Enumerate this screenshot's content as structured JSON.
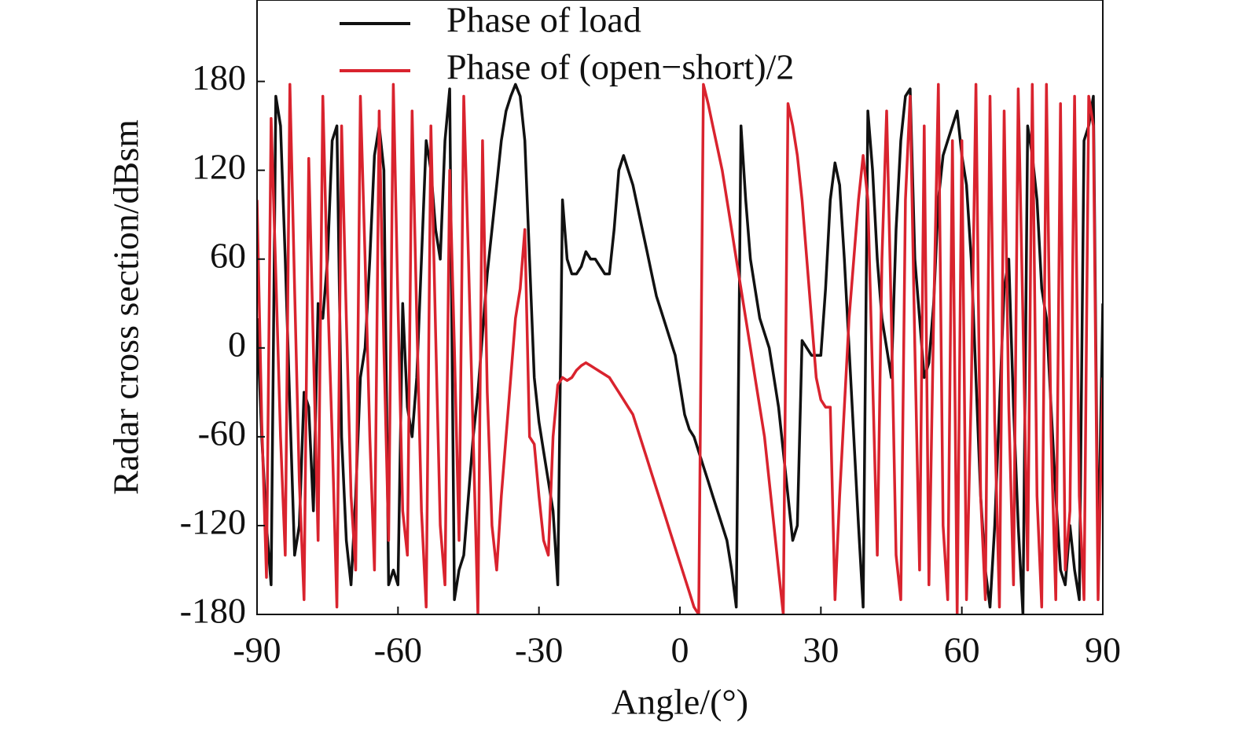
{
  "chart_data": {
    "type": "line",
    "xlabel": "Angle/(°)",
    "ylabel": "Radar cross section/dBsm",
    "legend": "upper left",
    "xlim": [
      -90,
      90
    ],
    "xticks": [
      -90,
      -60,
      -30,
      0,
      30,
      60,
      90
    ],
    "ylim": [
      -180,
      235
    ],
    "yticks": [
      -180,
      -120,
      -60,
      0,
      60,
      120,
      180
    ],
    "x": [
      -90,
      -89,
      -88,
      -87,
      -86,
      -85,
      -84,
      -83,
      -82,
      -81,
      -80,
      -79,
      -78,
      -77,
      -76,
      -75,
      -74,
      -73,
      -72,
      -71,
      -70,
      -69,
      -68,
      -67,
      -66,
      -65,
      -64,
      -63,
      -62,
      -61,
      -60,
      -59,
      -58,
      -57,
      -56,
      -55,
      -54,
      -53,
      -52,
      -51,
      -50,
      -49,
      -48,
      -47,
      -46,
      -45,
      -44,
      -43,
      -42,
      -41,
      -40,
      -39,
      -38,
      -37,
      -36,
      -35,
      -34,
      -33,
      -32,
      -31,
      -30,
      -29,
      -28,
      -27,
      -26,
      -25,
      -24,
      -23,
      -22,
      -21,
      -20,
      -19,
      -18,
      -17,
      -16,
      -15,
      -14,
      -13,
      -12,
      -11,
      -10,
      -9,
      -8,
      -7,
      -6,
      -5,
      -4,
      -3,
      -2,
      -1,
      0,
      1,
      2,
      3,
      4,
      5,
      6,
      7,
      8,
      9,
      10,
      11,
      12,
      13,
      14,
      15,
      16,
      17,
      18,
      19,
      20,
      21,
      22,
      23,
      24,
      25,
      26,
      27,
      28,
      29,
      30,
      31,
      32,
      33,
      34,
      35,
      36,
      37,
      38,
      39,
      40,
      41,
      42,
      43,
      44,
      45,
      46,
      47,
      48,
      49,
      50,
      51,
      52,
      53,
      54,
      55,
      56,
      57,
      58,
      59,
      60,
      61,
      62,
      63,
      64,
      65,
      66,
      67,
      68,
      69,
      70,
      71,
      72,
      73,
      74,
      75,
      76,
      77,
      78,
      79,
      80,
      81,
      82,
      83,
      84,
      85,
      86,
      87,
      88,
      89,
      90
    ],
    "series": [
      {
        "name": "Phase of load",
        "color": "#111111",
        "values": [
          20,
          -60,
          -120,
          -160,
          170,
          150,
          60,
          -40,
          -140,
          -120,
          -30,
          -40,
          -110,
          30,
          20,
          60,
          140,
          150,
          -60,
          -130,
          -160,
          -100,
          -20,
          0,
          60,
          130,
          150,
          120,
          -160,
          -150,
          -160,
          30,
          -40,
          -60,
          -20,
          60,
          140,
          120,
          80,
          60,
          140,
          175,
          -170,
          -150,
          -140,
          -100,
          -60,
          -30,
          10,
          50,
          80,
          110,
          140,
          160,
          170,
          178,
          170,
          140,
          60,
          -20,
          -50,
          -70,
          -90,
          -110,
          -160,
          100,
          60,
          50,
          50,
          55,
          65,
          60,
          60,
          55,
          50,
          50,
          80,
          120,
          130,
          120,
          110,
          95,
          80,
          65,
          50,
          35,
          25,
          15,
          5,
          -5,
          -25,
          -45,
          -55,
          -60,
          -70,
          -80,
          -90,
          -100,
          -110,
          -120,
          -130,
          -150,
          -175,
          150,
          100,
          60,
          40,
          20,
          10,
          0,
          -20,
          -40,
          -70,
          -100,
          -130,
          -120,
          5,
          0,
          -5,
          -5,
          -5,
          40,
          100,
          125,
          110,
          60,
          0,
          -60,
          -120,
          -175,
          160,
          120,
          60,
          20,
          0,
          -20,
          80,
          140,
          170,
          175,
          60,
          20,
          -20,
          -10,
          30,
          100,
          130,
          140,
          150,
          160,
          130,
          110,
          60,
          -20,
          -100,
          -150,
          -175,
          -120,
          -40,
          40,
          60,
          -40,
          -120,
          -180,
          150,
          130,
          100,
          40,
          20,
          -40,
          -100,
          -150,
          -160,
          -120,
          -150,
          -170,
          140,
          150,
          170,
          -150,
          30
        ]
      },
      {
        "name": "Phase of (open−short)/2",
        "color": "#d9232e",
        "values": [
          100,
          -50,
          -155,
          155,
          50,
          -60,
          -140,
          178,
          40,
          -90,
          -170,
          128,
          0,
          -130,
          170,
          40,
          -60,
          -175,
          150,
          20,
          -100,
          -150,
          170,
          60,
          -60,
          -150,
          160,
          0,
          -130,
          178,
          30,
          -110,
          -140,
          160,
          20,
          -110,
          -175,
          150,
          10,
          -120,
          -160,
          120,
          0,
          -130,
          170,
          60,
          -60,
          -180,
          140,
          -30,
          -120,
          -150,
          -100,
          -60,
          -20,
          20,
          40,
          80,
          -60,
          -65,
          -100,
          -130,
          -140,
          -60,
          -25,
          -20,
          -22,
          -20,
          -15,
          -12,
          -10,
          -12,
          -14,
          -16,
          -18,
          -20,
          -25,
          -30,
          -35,
          -40,
          -45,
          -55,
          -65,
          -75,
          -85,
          -95,
          -105,
          -115,
          -125,
          -135,
          -145,
          -155,
          -165,
          -175,
          -180,
          178,
          165,
          150,
          135,
          120,
          100,
          80,
          60,
          40,
          20,
          0,
          -20,
          -40,
          -60,
          -90,
          -120,
          -150,
          -180,
          165,
          150,
          130,
          100,
          60,
          20,
          -20,
          -35,
          -40,
          -40,
          -170,
          -100,
          -40,
          20,
          60,
          100,
          130,
          100,
          -20,
          -140,
          60,
          160,
          20,
          -140,
          -170,
          100,
          170,
          0,
          -150,
          150,
          -160,
          20,
          178,
          -120,
          -170,
          140,
          -180,
          140,
          -170,
          -30,
          178,
          -100,
          -170,
          170,
          -50,
          -175,
          160,
          -40,
          -160,
          175,
          20,
          -150,
          178,
          -100,
          -175,
          178,
          -60,
          -170,
          165,
          -150,
          -110,
          170,
          -100,
          -170,
          170,
          150,
          -170,
          -20
        ]
      }
    ]
  }
}
